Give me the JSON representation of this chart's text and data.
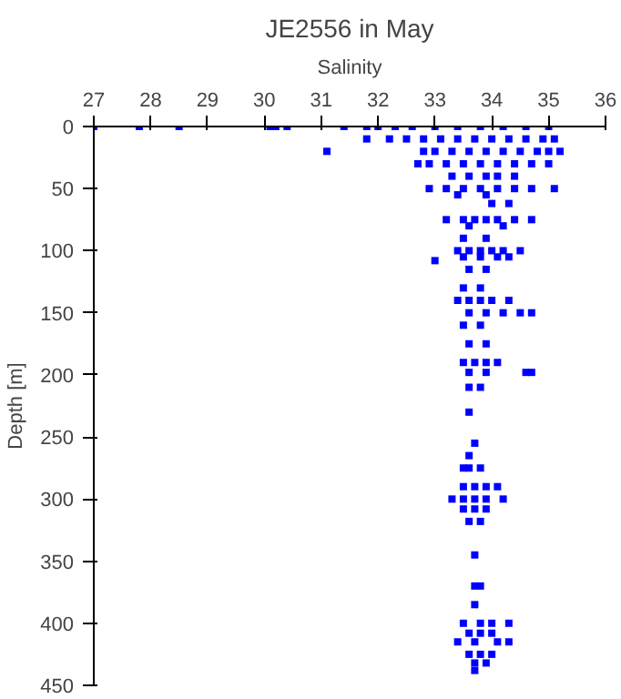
{
  "chart_data": {
    "type": "scatter",
    "title": "JE2556 in May",
    "xlabel": "Salinity",
    "ylabel": "Depth [m]",
    "xlim": [
      27,
      36
    ],
    "xticks": [
      27,
      28,
      29,
      30,
      31,
      32,
      33,
      34,
      35,
      36
    ],
    "ylim": [
      450,
      0
    ],
    "yticks": [
      0,
      50,
      100,
      150,
      200,
      250,
      300,
      350,
      400,
      450
    ],
    "grid": false,
    "marker": "square",
    "series": [
      {
        "color": "#0000ff",
        "x": [
          27,
          27.8,
          28.5,
          30.1,
          30.2,
          30.4,
          31.4,
          31.8,
          32.0,
          32.3,
          32.6,
          33.0,
          33.4,
          33.8,
          34.2,
          34.6,
          35.0,
          31.8,
          32.2,
          32.5,
          32.8,
          33.1,
          33.4,
          33.7,
          34.0,
          34.3,
          34.6,
          34.9,
          35.1,
          31.1,
          32.8,
          33.0,
          33.3,
          33.6,
          33.9,
          34.2,
          34.5,
          34.8,
          35.0,
          35.2,
          32.7,
          32.9,
          33.2,
          33.5,
          33.8,
          34.1,
          34.4,
          34.7,
          35.0,
          33.3,
          33.6,
          33.9,
          34.1,
          34.4,
          32.9,
          33.2,
          33.5,
          33.8,
          34.1,
          34.4,
          34.7,
          35.1,
          33.4,
          33.9,
          34.0,
          34.3,
          33.2,
          33.5,
          33.7,
          33.9,
          34.1,
          34.4,
          34.7,
          33.6,
          34.2,
          33.5,
          33.9,
          33.4,
          33.6,
          33.8,
          34.0,
          34.2,
          34.5,
          33.5,
          33.8,
          34.1,
          34.3,
          33.0,
          33.6,
          33.9,
          33.5,
          33.8,
          33.4,
          33.6,
          33.8,
          34.0,
          34.3,
          33.6,
          33.9,
          34.2,
          34.5,
          34.7,
          33.5,
          33.8,
          33.6,
          33.9,
          33.5,
          33.7,
          33.9,
          34.1,
          33.6,
          33.9,
          34.6,
          34.7,
          33.6,
          33.8,
          33.6,
          33.7,
          33.6,
          33.5,
          33.6,
          33.8,
          33.5,
          33.7,
          33.9,
          34.1,
          33.3,
          33.5,
          33.7,
          33.9,
          34.2,
          33.5,
          33.7,
          33.9,
          33.6,
          33.8,
          33.7,
          33.7,
          33.8,
          33.7,
          33.5,
          33.8,
          34.0,
          34.3,
          33.6,
          33.8,
          34.0,
          33.4,
          33.7,
          34.1,
          34.3,
          33.6,
          33.8,
          34.0,
          33.7,
          33.9,
          33.7
        ],
        "values": [
          0,
          0,
          0,
          0,
          0,
          0,
          0,
          0,
          0,
          0,
          0,
          0,
          0,
          0,
          0,
          0,
          0,
          10,
          10,
          10,
          10,
          10,
          10,
          10,
          10,
          10,
          10,
          10,
          10,
          20,
          20,
          20,
          20,
          20,
          20,
          20,
          20,
          20,
          20,
          20,
          30,
          30,
          30,
          30,
          30,
          30,
          30,
          30,
          30,
          40,
          40,
          40,
          40,
          40,
          50,
          50,
          50,
          50,
          50,
          50,
          50,
          50,
          55,
          55,
          62,
          62,
          75,
          75,
          75,
          75,
          75,
          75,
          75,
          80,
          80,
          90,
          90,
          100,
          100,
          100,
          100,
          100,
          100,
          105,
          105,
          105,
          105,
          108,
          115,
          115,
          130,
          130,
          140,
          140,
          140,
          140,
          140,
          150,
          150,
          150,
          150,
          150,
          160,
          160,
          175,
          175,
          190,
          190,
          190,
          190,
          198,
          198,
          198,
          198,
          210,
          210,
          230,
          255,
          265,
          275,
          275,
          275,
          290,
          290,
          290,
          290,
          300,
          300,
          300,
          300,
          300,
          308,
          308,
          308,
          318,
          318,
          345,
          370,
          370,
          385,
          400,
          400,
          400,
          400,
          408,
          408,
          408,
          415,
          415,
          415,
          415,
          425,
          425,
          425,
          432,
          432,
          438
        ]
      }
    ]
  }
}
